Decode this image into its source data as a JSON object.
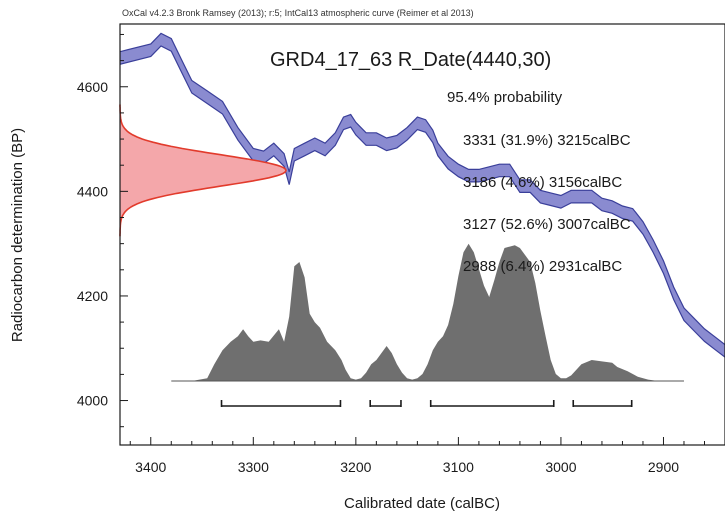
{
  "chart_data": {
    "type": "area",
    "header": "OxCal v4.2.3 Bronk Ramsey (2013); r:5; IntCal13 atmospheric curve (Reimer et al 2013)",
    "title": "GRD4_17_63 R_Date(4440,30)",
    "xlabel": "Calibrated date (calBC)",
    "ylabel": "Radiocarbon determination (BP)",
    "xlim": [
      3430,
      2840
    ],
    "ylim": [
      3915,
      4720
    ],
    "x_reversed": true,
    "x_ticks": [
      3400,
      3300,
      3200,
      3100,
      3000,
      2900
    ],
    "y_ticks": [
      4000,
      4200,
      4400,
      4600
    ],
    "annotations": {
      "probability_label": "95.4% probability",
      "ranges": [
        "3331 (31.9%) 3215calBC",
        "3186 (4.6%) 3156calBC",
        "3127 (52.6%) 3007calBC",
        "2988 (6.4%) 2931calBC"
      ]
    },
    "ranges_numeric": [
      {
        "from": 3331,
        "to": 3215,
        "prob": 31.9
      },
      {
        "from": 3186,
        "to": 3156,
        "prob": 4.6
      },
      {
        "from": 3127,
        "to": 3007,
        "prob": 52.6
      },
      {
        "from": 2988,
        "to": 2931,
        "prob": 6.4
      }
    ],
    "measurement": {
      "mean": 4440,
      "sigma": 30
    },
    "calibration_curve": {
      "x": [
        3430,
        3400,
        3390,
        3380,
        3370,
        3360,
        3345,
        3330,
        3315,
        3300,
        3290,
        3280,
        3270,
        3265,
        3260,
        3250,
        3240,
        3230,
        3220,
        3212,
        3205,
        3200,
        3190,
        3180,
        3170,
        3160,
        3150,
        3140,
        3132,
        3125,
        3120,
        3110,
        3100,
        3090,
        3080,
        3070,
        3060,
        3050,
        3040,
        3030,
        3020,
        3010,
        3000,
        2990,
        2980,
        2970,
        2960,
        2950,
        2940,
        2930,
        2920,
        2910,
        2900,
        2890,
        2880,
        2870,
        2860,
        2850,
        2840
      ],
      "y": [
        4655,
        4670,
        4690,
        4680,
        4640,
        4600,
        4580,
        4560,
        4510,
        4470,
        4465,
        4480,
        4460,
        4425,
        4470,
        4480,
        4490,
        4480,
        4500,
        4530,
        4535,
        4520,
        4500,
        4500,
        4490,
        4495,
        4510,
        4530,
        4525,
        4505,
        4480,
        4455,
        4440,
        4430,
        4430,
        4435,
        4440,
        4440,
        4410,
        4410,
        4390,
        4385,
        4380,
        4390,
        4390,
        4390,
        4375,
        4370,
        4360,
        4355,
        4330,
        4295,
        4255,
        4205,
        4165,
        4145,
        4125,
        4110,
        4095
      ],
      "band": 12
    },
    "posterior_distribution": {
      "x": [
        3380,
        3360,
        3345,
        3338,
        3330,
        3322,
        3315,
        3310,
        3305,
        3300,
        3293,
        3285,
        3275,
        3270,
        3265,
        3260,
        3255,
        3250,
        3245,
        3240,
        3235,
        3228,
        3220,
        3214,
        3210,
        3205,
        3200,
        3195,
        3190,
        3185,
        3180,
        3175,
        3170,
        3165,
        3160,
        3155,
        3150,
        3145,
        3140,
        3135,
        3130,
        3125,
        3120,
        3115,
        3110,
        3105,
        3100,
        3095,
        3090,
        3085,
        3080,
        3075,
        3070,
        3065,
        3060,
        3055,
        3050,
        3045,
        3040,
        3030,
        3025,
        3020,
        3015,
        3010,
        3005,
        3000,
        2995,
        2990,
        2980,
        2970,
        2960,
        2950,
        2945,
        2935,
        2925,
        2915,
        2905,
        2880
      ],
      "y": [
        0,
        0,
        0.02,
        0.12,
        0.22,
        0.28,
        0.32,
        0.37,
        0.32,
        0.28,
        0.29,
        0.28,
        0.37,
        0.28,
        0.46,
        0.82,
        0.85,
        0.74,
        0.48,
        0.42,
        0.38,
        0.28,
        0.22,
        0.15,
        0.08,
        0.02,
        0.01,
        0.02,
        0.06,
        0.12,
        0.15,
        0.2,
        0.25,
        0.2,
        0.12,
        0.06,
        0.02,
        0.01,
        0.02,
        0.05,
        0.12,
        0.22,
        0.28,
        0.32,
        0.4,
        0.55,
        0.75,
        0.92,
        0.98,
        0.92,
        0.8,
        0.68,
        0.6,
        0.72,
        0.85,
        0.95,
        0.96,
        0.97,
        0.95,
        0.85,
        0.7,
        0.5,
        0.32,
        0.15,
        0.05,
        0.02,
        0.02,
        0.04,
        0.12,
        0.15,
        0.14,
        0.13,
        0.1,
        0.07,
        0.03,
        0.01,
        0,
        0
      ]
    },
    "colors": {
      "calibration_fill": "#8a8bd0",
      "calibration_stroke": "#3a3f9a",
      "measurement_fill": "#f4a7aa",
      "measurement_stroke": "#e23b2c",
      "posterior_fill": "#6f6f6f",
      "range_bar": "#1a1a1a",
      "axis": "#1a1a1a"
    },
    "grid": false
  }
}
